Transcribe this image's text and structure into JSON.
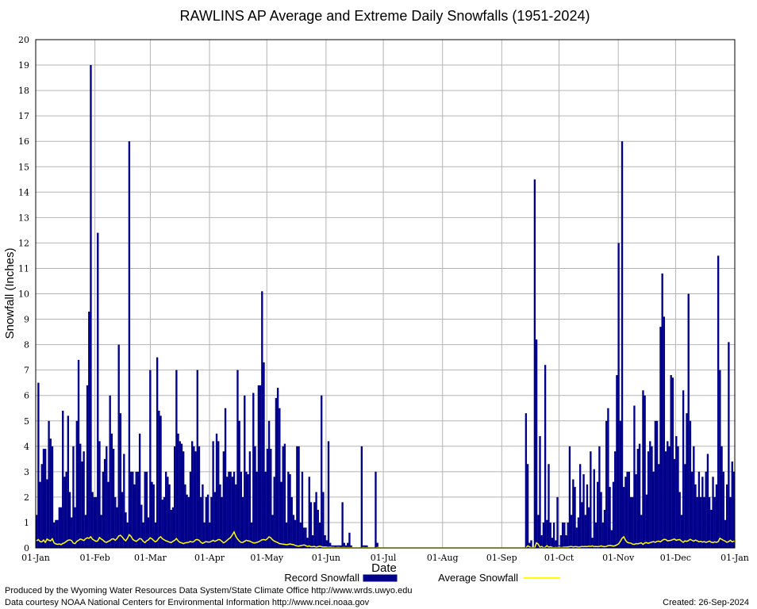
{
  "chart_data": {
    "type": "bar",
    "title": "RAWLINS AP Average and Extreme Daily Snowfalls (1951-2024)",
    "xlabel": "Date",
    "ylabel": "Snowfall (Inches)",
    "ylim": [
      0,
      20
    ],
    "y_ticks": [
      "0",
      "1",
      "2",
      "3",
      "4",
      "5",
      "6",
      "7",
      "8",
      "9",
      "10",
      "11",
      "12",
      "13",
      "14",
      "15",
      "16",
      "17",
      "18",
      "19",
      "20"
    ],
    "x_ticks": [
      "01-Jan",
      "01-Feb",
      "01-Mar",
      "01-Apr",
      "01-May",
      "01-Jun",
      "01-Jul",
      "01-Aug",
      "01-Sep",
      "01-Oct",
      "01-Nov",
      "01-Dec",
      "01-Jan"
    ],
    "grid": true,
    "legend": "bottom",
    "series": [
      {
        "name": "Record Snowfall",
        "style": "bar",
        "color": "#00008b",
        "values": [
          1.3,
          6.5,
          2.6,
          3.3,
          3.9,
          3.9,
          2.7,
          5.0,
          4.3,
          4.0,
          1.0,
          1.1,
          1.1,
          1.6,
          1.6,
          5.4,
          2.8,
          3.0,
          5.2,
          2.2,
          1.2,
          4.0,
          1.6,
          5.0,
          7.4,
          4.1,
          3.4,
          3.8,
          1.3,
          6.4,
          9.3,
          19.0,
          2.2,
          2.0,
          2.0,
          12.4,
          4.2,
          1.3,
          3.0,
          3.5,
          4.0,
          2.6,
          6.0,
          4.5,
          3.9,
          2.0,
          1.6,
          8.0,
          5.3,
          2.2,
          3.7,
          1.4,
          1.0,
          16.0,
          3.0,
          3.0,
          2.5,
          3.0,
          3.0,
          4.5,
          1.7,
          1.0,
          3.0,
          3.0,
          1.2,
          7.0,
          2.6,
          2.5,
          1.0,
          7.5,
          5.4,
          5.2,
          1.9,
          2.0,
          3.0,
          2.8,
          2.5,
          1.5,
          1.6,
          4.0,
          7.0,
          4.5,
          4.2,
          4.1,
          3.8,
          2.5,
          2.1,
          2.0,
          3.0,
          4.2,
          4.0,
          3.8,
          7.0,
          4.0,
          2.0,
          2.5,
          1.0,
          2.0,
          2.1,
          1.0,
          2.0,
          4.2,
          2.2,
          4.5,
          4.2,
          2.5,
          2.0,
          3.8,
          5.5,
          2.8,
          3.0,
          3.0,
          2.8,
          3.0,
          2.5,
          7.0,
          5.0,
          3.0,
          2.0,
          6.0,
          3.0,
          2.9,
          3.8,
          1.0,
          6.1,
          4.0,
          3.0,
          6.4,
          6.4,
          10.1,
          7.3,
          3.0,
          3.9,
          5.0,
          3.9,
          1.3,
          2.8,
          5.9,
          6.3,
          5.5,
          2.6,
          4.0,
          4.1,
          1.0,
          3.0,
          2.9,
          2.0,
          1.3,
          1.1,
          4.0,
          4.0,
          1.0,
          3.0,
          0.8,
          0.8,
          0.4,
          2.8,
          1.8,
          0.5,
          1.8,
          2.2,
          1.5,
          1.0,
          6.0,
          2.2,
          0.5,
          0.3,
          4.2,
          0.2,
          0.1,
          0.1,
          0.1,
          0.1,
          0.1,
          0.1,
          1.8,
          0.2,
          0.1,
          0.2,
          0.6,
          0.1,
          0,
          0,
          0,
          0,
          0,
          4.0,
          0.1,
          0.1,
          0.1,
          0,
          0,
          0,
          0,
          3.0,
          0.2,
          0,
          0,
          0,
          0,
          0,
          0,
          0,
          0,
          0,
          0,
          0,
          0,
          0,
          0,
          0,
          0,
          0,
          0,
          0,
          0,
          0,
          0,
          0,
          0,
          0,
          0,
          0,
          0,
          0,
          0,
          0,
          0,
          0,
          0,
          0,
          0,
          0,
          0,
          0,
          0,
          0,
          0,
          0,
          0,
          0,
          0,
          0,
          0,
          0,
          0,
          0,
          0,
          0,
          0,
          0,
          0,
          0,
          0,
          0,
          0,
          0,
          0,
          0,
          0,
          0,
          0,
          0,
          0,
          0,
          0,
          0,
          0,
          0,
          0,
          0,
          0,
          0,
          0,
          0,
          0,
          0,
          0,
          0,
          0,
          5.3,
          3.3,
          0.2,
          0.3,
          0,
          14.5,
          8.2,
          1.3,
          4.4,
          0.5,
          1.0,
          7.2,
          1.1,
          3.3,
          1.0,
          0.4,
          1.0,
          0.3,
          2.0,
          0.1,
          0.5,
          1.0,
          1.0,
          0.5,
          1.0,
          4.0,
          1.3,
          2.7,
          2.4,
          0.8,
          1.2,
          3.3,
          1.8,
          2.9,
          1.3,
          2.5,
          1.6,
          3.8,
          0.4,
          3.1,
          1.0,
          2.6,
          4.0,
          2.2,
          1.0,
          1.5,
          5.0,
          5.5,
          2.4,
          0.7,
          2.6,
          3.8,
          6.8,
          12.0,
          5.0,
          16.0,
          2.4,
          2.8,
          3.0,
          3.0,
          2.0,
          2.0,
          5.6,
          2.9,
          3.9,
          4.1,
          1.3,
          6.2,
          6.0,
          2.1,
          3.8,
          4.2,
          4.0,
          3.0,
          5.0,
          5.0,
          3.3,
          8.7,
          10.8,
          9.1,
          3.8,
          4.2,
          4.0,
          6.8,
          6.7,
          3.5,
          4.4,
          4.0,
          2.2,
          1.3,
          6.2,
          3.3,
          5.3,
          10.0,
          5.0,
          3.0,
          4.0,
          2.5,
          2.0,
          3.0,
          2.0,
          2.8,
          2.0,
          3.0,
          3.7,
          2.0,
          1.5,
          2.8,
          2.0,
          2.5,
          11.5,
          7.0,
          4.0,
          3.0,
          1.1,
          2.5,
          8.1,
          2.0,
          3.4,
          3.0
        ]
      },
      {
        "name": "Average Snowfall",
        "style": "line",
        "color": "#ffff00",
        "values": [
          0.28,
          0.33,
          0.25,
          0.24,
          0.31,
          0.22,
          0.35,
          0.3,
          0.28,
          0.36,
          0.2,
          0.16,
          0.14,
          0.16,
          0.13,
          0.18,
          0.2,
          0.26,
          0.3,
          0.32,
          0.29,
          0.19,
          0.17,
          0.26,
          0.3,
          0.35,
          0.33,
          0.29,
          0.36,
          0.4,
          0.38,
          0.44,
          0.34,
          0.3,
          0.26,
          0.28,
          0.41,
          0.35,
          0.31,
          0.24,
          0.22,
          0.26,
          0.29,
          0.35,
          0.36,
          0.3,
          0.37,
          0.47,
          0.5,
          0.43,
          0.34,
          0.28,
          0.38,
          0.52,
          0.46,
          0.34,
          0.29,
          0.26,
          0.31,
          0.37,
          0.35,
          0.26,
          0.21,
          0.28,
          0.32,
          0.4,
          0.36,
          0.29,
          0.24,
          0.29,
          0.39,
          0.44,
          0.36,
          0.32,
          0.28,
          0.26,
          0.23,
          0.21,
          0.26,
          0.3,
          0.37,
          0.28,
          0.22,
          0.2,
          0.17,
          0.2,
          0.21,
          0.22,
          0.26,
          0.23,
          0.25,
          0.32,
          0.33,
          0.3,
          0.22,
          0.18,
          0.22,
          0.25,
          0.23,
          0.23,
          0.26,
          0.3,
          0.26,
          0.29,
          0.33,
          0.32,
          0.26,
          0.2,
          0.24,
          0.3,
          0.36,
          0.41,
          0.51,
          0.63,
          0.46,
          0.35,
          0.27,
          0.22,
          0.22,
          0.26,
          0.3,
          0.28,
          0.27,
          0.23,
          0.2,
          0.2,
          0.22,
          0.24,
          0.28,
          0.32,
          0.33,
          0.31,
          0.36,
          0.44,
          0.4,
          0.32,
          0.27,
          0.24,
          0.21,
          0.17,
          0.16,
          0.15,
          0.14,
          0.13,
          0.14,
          0.16,
          0.14,
          0.13,
          0.1,
          0.08,
          0.07,
          0.09,
          0.1,
          0.12,
          0.09,
          0.06,
          0.08,
          0.05,
          0.05,
          0.06,
          0.03,
          0.05,
          0.07,
          0.05,
          0.03,
          0.04,
          0.03,
          0.02,
          0.03,
          0.02,
          0.02,
          0.01,
          0.02,
          0.02,
          0.01,
          0.01,
          0.02,
          0.01,
          0.01,
          0.01,
          0.01,
          0,
          0,
          0,
          0,
          0,
          0,
          0.02,
          0.01,
          0.01,
          0.01,
          0,
          0,
          0,
          0,
          0.02,
          0.01,
          0,
          0,
          0,
          0,
          0,
          0,
          0,
          0,
          0,
          0,
          0,
          0,
          0,
          0,
          0,
          0,
          0,
          0,
          0,
          0,
          0,
          0,
          0,
          0,
          0,
          0,
          0,
          0,
          0,
          0,
          0,
          0,
          0,
          0,
          0,
          0,
          0,
          0,
          0,
          0,
          0,
          0,
          0,
          0,
          0,
          0,
          0,
          0,
          0,
          0,
          0,
          0,
          0,
          0,
          0,
          0,
          0,
          0,
          0,
          0,
          0,
          0,
          0,
          0,
          0,
          0,
          0,
          0,
          0,
          0,
          0,
          0,
          0,
          0,
          0,
          0,
          0,
          0,
          0,
          0,
          0,
          0,
          0,
          0,
          0.08,
          0.05,
          0.01,
          0.01,
          0,
          0.2,
          0.15,
          0.03,
          0.06,
          0.01,
          0.02,
          0.09,
          0.03,
          0.05,
          0.02,
          0.01,
          0.02,
          0.01,
          0.04,
          0.01,
          0.02,
          0.03,
          0.03,
          0.04,
          0.05,
          0.06,
          0.04,
          0.05,
          0.05,
          0.03,
          0.04,
          0.06,
          0.05,
          0.06,
          0.05,
          0.07,
          0.06,
          0.08,
          0.05,
          0.06,
          0.05,
          0.06,
          0.08,
          0.06,
          0.05,
          0.06,
          0.09,
          0.1,
          0.09,
          0.07,
          0.09,
          0.12,
          0.16,
          0.26,
          0.38,
          0.44,
          0.3,
          0.22,
          0.2,
          0.19,
          0.15,
          0.14,
          0.17,
          0.16,
          0.18,
          0.2,
          0.14,
          0.2,
          0.21,
          0.18,
          0.21,
          0.23,
          0.25,
          0.22,
          0.26,
          0.27,
          0.24,
          0.3,
          0.34,
          0.33,
          0.28,
          0.29,
          0.3,
          0.33,
          0.35,
          0.3,
          0.32,
          0.33,
          0.27,
          0.22,
          0.28,
          0.26,
          0.29,
          0.34,
          0.3,
          0.27,
          0.31,
          0.28,
          0.24,
          0.26,
          0.23,
          0.25,
          0.22,
          0.24,
          0.27,
          0.23,
          0.21,
          0.24,
          0.22,
          0.25,
          0.38,
          0.34,
          0.3,
          0.27,
          0.22,
          0.25,
          0.3,
          0.24,
          0.27,
          0.26
        ]
      }
    ]
  },
  "footer": {
    "left_line1": "Produced by the Wyoming Water Resources Data System/State Climate Office http://www.wrds.uwyo.edu",
    "left_line2": "Data courtesy NOAA National Centers for Environmental Information http://www.ncei.noaa.gov",
    "created": "Created:  26-Sep-2024"
  }
}
